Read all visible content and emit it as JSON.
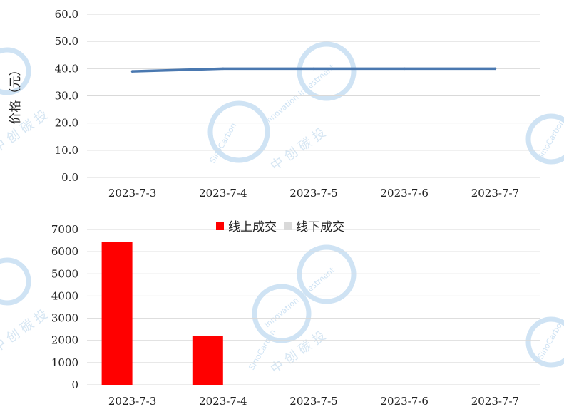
{
  "watermark": {
    "text_en_1": "SinoCarbon",
    "text_en_2": "Innovation Investment",
    "text_cn": "中 创 碳 投",
    "color": "#cfe3f4"
  },
  "chart_data": [
    {
      "type": "line",
      "categories": [
        "2023-7-3",
        "2023-7-4",
        "2023-7-5",
        "2023-7-6",
        "2023-7-7"
      ],
      "series": [
        {
          "values": [
            39.0,
            40.0,
            40.0,
            40.0,
            40.0
          ],
          "color": "#4a78b0"
        }
      ],
      "ylabel": "价格（元）",
      "yticks": [
        "0.0",
        "10.0",
        "20.0",
        "30.0",
        "40.0",
        "50.0",
        "60.0"
      ],
      "ylim": [
        0,
        60
      ],
      "grid": true
    },
    {
      "type": "bar",
      "categories": [
        "2023-7-3",
        "2023-7-4",
        "2023-7-5",
        "2023-7-6",
        "2023-7-7"
      ],
      "series": [
        {
          "name": "线上成交",
          "values": [
            6450,
            2200,
            0,
            0,
            0
          ],
          "color": "#ff0000"
        },
        {
          "name": "线下成交",
          "values": [
            0,
            0,
            0,
            0,
            0
          ],
          "color": "#d9d9d9"
        }
      ],
      "yticks": [
        "0",
        "1000",
        "2000",
        "3000",
        "4000",
        "5000",
        "6000",
        "7000"
      ],
      "ylim": [
        0,
        7000
      ],
      "legend": "top-center",
      "grid": true
    }
  ]
}
